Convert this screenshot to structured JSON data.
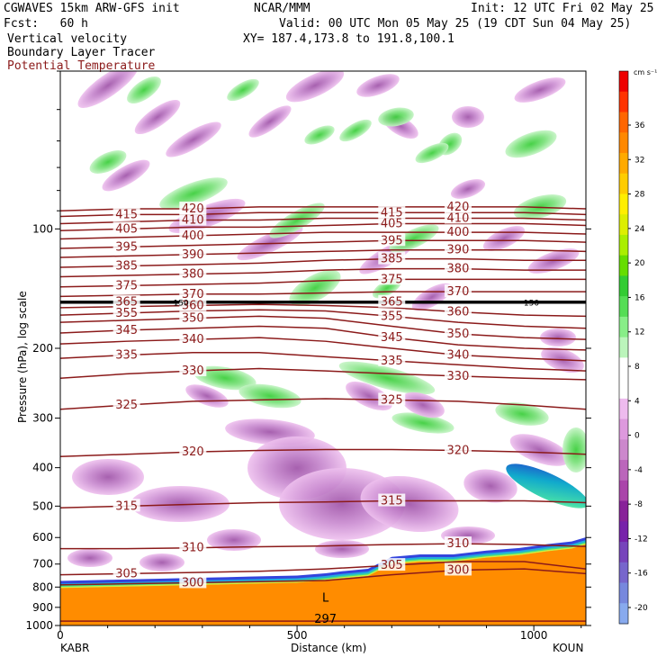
{
  "header": {
    "line1_left": "CGWAVES 15km ARW-GFS init",
    "line1_mid": "NCAR/MMM",
    "line1_right": "Init: 12 UTC Fri 02 May 25",
    "line2_left": "Fcst:   60 h",
    "line2_right": "Valid: 00 UTC Mon 05 May 25 (19 CDT Sun 04 May 25)",
    "line3_left": "Vertical velocity",
    "line3_right": "XY= 187.4,173.8 to 191.8,100.1",
    "line4_left": "Boundary Layer Tracer",
    "line5_left": "Potential Temperature"
  },
  "colors": {
    "theta": "#8b1a1a",
    "background": "#ffffff"
  },
  "chart_data": {
    "type": "cross-section",
    "title": "",
    "xlabel": "Distance (km)",
    "ylabel": "Pressure (hPa), log scale",
    "xlim": [
      0,
      1110
    ],
    "ylim": [
      1000,
      40
    ],
    "y_scale": "log",
    "x_ticks": [
      0,
      500,
      1000
    ],
    "y_ticks": [
      100,
      200,
      300,
      400,
      500,
      600,
      700,
      800,
      900,
      1000
    ],
    "start_label": "KABR",
    "end_label": "KOUN",
    "colorbar": {
      "units": "cm s⁻¹",
      "ticks": [
        36,
        32,
        28,
        24,
        20,
        16,
        12,
        8,
        4,
        0,
        -4,
        -8,
        -12,
        -16,
        -20
      ],
      "colors": [
        "#ee0000",
        "#ff3300",
        "#ff6600",
        "#ff8800",
        "#ffaa00",
        "#ffcc00",
        "#ffee00",
        "#ddee00",
        "#aaee00",
        "#66dd00",
        "#33cc33",
        "#55dd55",
        "#88ee88",
        "#bbf5bb",
        "#ffffff",
        "#ffffff",
        "#eebbee",
        "#dd99dd",
        "#cc88cc",
        "#bb66bb",
        "#aa44aa",
        "#882299",
        "#7722aa",
        "#7744bb",
        "#7766cc",
        "#7788dd",
        "#88aaee"
      ]
    },
    "theta_contours": [
      {
        "value": 297,
        "p": [
          975,
          975,
          975,
          975,
          975,
          975,
          975,
          975,
          975
        ]
      },
      {
        "value": 300,
        "p": [
          790,
          785,
          780,
          775,
          770,
          745,
          725,
          720,
          740
        ]
      },
      {
        "value": 305,
        "p": [
          745,
          740,
          735,
          730,
          720,
          705,
          690,
          690,
          720
        ]
      },
      {
        "value": 310,
        "p": [
          640,
          640,
          637,
          633,
          630,
          625,
          622,
          625,
          632
        ]
      },
      {
        "value": 315,
        "p": [
          505,
          500,
          495,
          490,
          488,
          485,
          485,
          485,
          490
        ]
      },
      {
        "value": 320,
        "p": [
          375,
          370,
          365,
          362,
          360,
          360,
          362,
          365,
          370
        ]
      },
      {
        "value": 325,
        "p": [
          285,
          278,
          272,
          270,
          268,
          270,
          272,
          278,
          285
        ]
      },
      {
        "value": 330,
        "p": [
          238,
          232,
          228,
          225,
          228,
          232,
          235,
          238,
          240
        ]
      },
      {
        "value": 335,
        "p": [
          212,
          208,
          205,
          205,
          210,
          215,
          220,
          225,
          228
        ]
      },
      {
        "value": 340,
        "p": [
          195,
          192,
          190,
          188,
          192,
          200,
          208,
          212,
          215
        ]
      },
      {
        "value": 345,
        "p": [
          183,
          180,
          178,
          176,
          178,
          188,
          196,
          200,
          202
        ]
      },
      {
        "value": 350,
        "p": [
          172,
          170,
          168,
          166,
          168,
          176,
          184,
          188,
          190
        ]
      },
      {
        "value": 355,
        "p": [
          165,
          163,
          161,
          160,
          161,
          166,
          172,
          176,
          178
        ]
      },
      {
        "value": 360,
        "p": [
          158,
          157,
          156,
          155,
          156,
          158,
          162,
          165,
          166
        ]
      },
      {
        "value": 365,
        "p": [
          153,
          153,
          153,
          153,
          153,
          153,
          153,
          153,
          153
        ]
      },
      {
        "value": 370,
        "p": [
          148,
          147,
          146,
          146,
          145,
          144,
          144,
          144,
          144
        ]
      },
      {
        "value": 375,
        "p": [
          140,
          139,
          138,
          137,
          135,
          134,
          134,
          134,
          134
        ]
      },
      {
        "value": 380,
        "p": [
          132,
          131,
          130,
          129,
          127,
          126,
          126,
          127,
          127
        ]
      },
      {
        "value": 385,
        "p": [
          125,
          124,
          123,
          122,
          120,
          119,
          119,
          120,
          120
        ]
      },
      {
        "value": 390,
        "p": [
          118,
          117,
          116,
          115,
          114,
          113,
          113,
          113,
          114
        ]
      },
      {
        "value": 395,
        "p": [
          112,
          111,
          110,
          109,
          108,
          107,
          107,
          107,
          108
        ]
      },
      {
        "value": 400,
        "p": [
          106,
          105,
          104,
          103,
          102,
          102,
          102,
          102,
          103
        ]
      },
      {
        "value": 405,
        "p": [
          101,
          100,
          99,
          99,
          98,
          97,
          97,
          97,
          98
        ]
      },
      {
        "value": 410,
        "p": [
          97,
          96,
          95,
          95,
          94,
          94,
          94,
          94,
          95
        ]
      },
      {
        "value": 415,
        "p": [
          93,
          92,
          92,
          91,
          91,
          91,
          91,
          91,
          92
        ]
      },
      {
        "value": 420,
        "p": [
          90,
          89,
          89,
          88,
          88,
          88,
          88,
          88,
          89
        ]
      }
    ],
    "theta_x": [
      0,
      140,
      280,
      420,
      560,
      700,
      840,
      980,
      1110
    ],
    "tropopause_label": "150",
    "low_label": "L",
    "terrain_p": [
      805,
      800,
      795,
      790,
      785,
      780,
      770,
      760,
      750,
      700,
      690,
      690,
      675,
      665,
      650,
      640,
      625
    ],
    "terrain_x": [
      0,
      100,
      200,
      300,
      400,
      500,
      560,
      600,
      650,
      700,
      760,
      830,
      900,
      970,
      1030,
      1080,
      1110
    ]
  }
}
